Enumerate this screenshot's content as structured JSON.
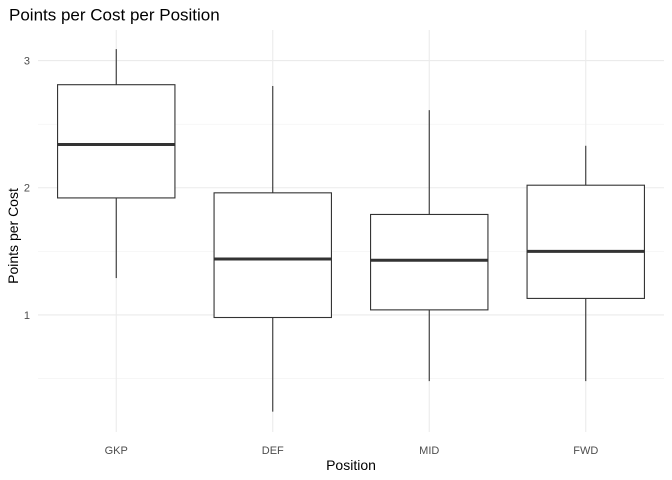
{
  "chart_data": {
    "type": "boxplot",
    "title": "Points per Cost per Position",
    "xlabel": "Position",
    "ylabel": "Points per Cost",
    "categories": [
      "GKP",
      "DEF",
      "MID",
      "FWD"
    ],
    "boxes": [
      {
        "category": "GKP",
        "min": 1.29,
        "q1": 1.92,
        "median": 2.34,
        "q3": 2.81,
        "max": 3.09
      },
      {
        "category": "DEF",
        "min": 0.24,
        "q1": 0.98,
        "median": 1.44,
        "q3": 1.96,
        "max": 2.8
      },
      {
        "category": "MID",
        "min": 0.48,
        "q1": 1.04,
        "median": 1.43,
        "q3": 1.79,
        "max": 2.61
      },
      {
        "category": "FWD",
        "min": 0.48,
        "q1": 1.13,
        "median": 1.5,
        "q3": 2.02,
        "max": 2.33
      }
    ],
    "yticks": [
      1,
      2,
      3
    ],
    "yminor": [
      0.5,
      1.5,
      2.5
    ],
    "ylim": [
      0.08,
      3.24
    ],
    "grid": true,
    "legend": "none",
    "colors": {
      "box_fill": "#ffffff",
      "box_stroke": "#333333",
      "grid_major": "#ebebeb",
      "grid_minor": "#f2f2f2"
    }
  }
}
